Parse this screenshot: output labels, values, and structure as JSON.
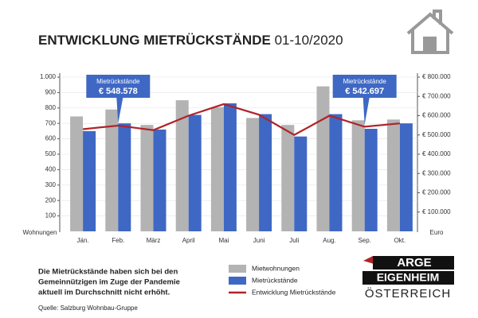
{
  "chart_data": {
    "type": "bar",
    "title": "ENTWICKLUNG MIETRÜCKSTÄNDE",
    "subtitle": "01-10/2020",
    "categories": [
      "Jän.",
      "Feb.",
      "März",
      "April",
      "Mai",
      "Juni",
      "Juli",
      "Aug.",
      "Sep.",
      "Okt."
    ],
    "series": [
      {
        "name": "Mietwohnungen",
        "color": "#b3b3b3",
        "type": "bar",
        "values": [
          745,
          790,
          690,
          850,
          805,
          735,
          690,
          940,
          720,
          725
        ]
      },
      {
        "name": "Mietrückstände",
        "color": "#3f68c4",
        "type": "bar",
        "values": [
          650,
          700,
          660,
          755,
          830,
          760,
          615,
          760,
          665,
          700
        ]
      },
      {
        "name": "Entwicklung Mietrückstände",
        "color": "#b0232a",
        "type": "line",
        "axis": "y2",
        "values": [
          530000,
          548578,
          525000,
          600000,
          660000,
          605000,
          500000,
          600000,
          542697,
          560000
        ]
      }
    ],
    "ylim": [
      0,
      1000
    ],
    "yticks": [
      100,
      200,
      300,
      400,
      500,
      600,
      700,
      800,
      900,
      {
        "value": 1000,
        "label": "1.000"
      }
    ],
    "y2lim": [
      0,
      800000
    ],
    "y2ticks": [
      {
        "value": 100000,
        "label": "€ 100.000"
      },
      {
        "value": 200000,
        "label": "€ 200.000"
      },
      {
        "value": 300000,
        "label": "€ 300.000"
      },
      {
        "value": 400000,
        "label": "€ 400.000"
      },
      {
        "value": 500000,
        "label": "€ 500.000"
      },
      {
        "value": 600000,
        "label": "€ 600.000"
      },
      {
        "value": 700000,
        "label": "€ 700.000"
      },
      {
        "value": 800000,
        "label": "€ 800.000"
      }
    ],
    "ylabel": "Wohnungen",
    "y2label": "Euro",
    "grid": true,
    "annotations": [
      {
        "title": "Mietrückstände",
        "text": "€ 548.578"
      },
      {
        "title": "Mietrückstände",
        "text": "€ 542.697"
      }
    ],
    "note": [
      "Die Mietrückstände haben sich bei den",
      "Gemeinnützigen im Zuge der Pandemie",
      "aktuell im Durchschnitt nicht erhöht."
    ],
    "source": "Quelle: Salzburg Wohnbau-Gruppe"
  },
  "logo": {
    "line1": "ARGE",
    "line2": "EIGENHEIM",
    "line3": "ÖSTERREICH"
  }
}
